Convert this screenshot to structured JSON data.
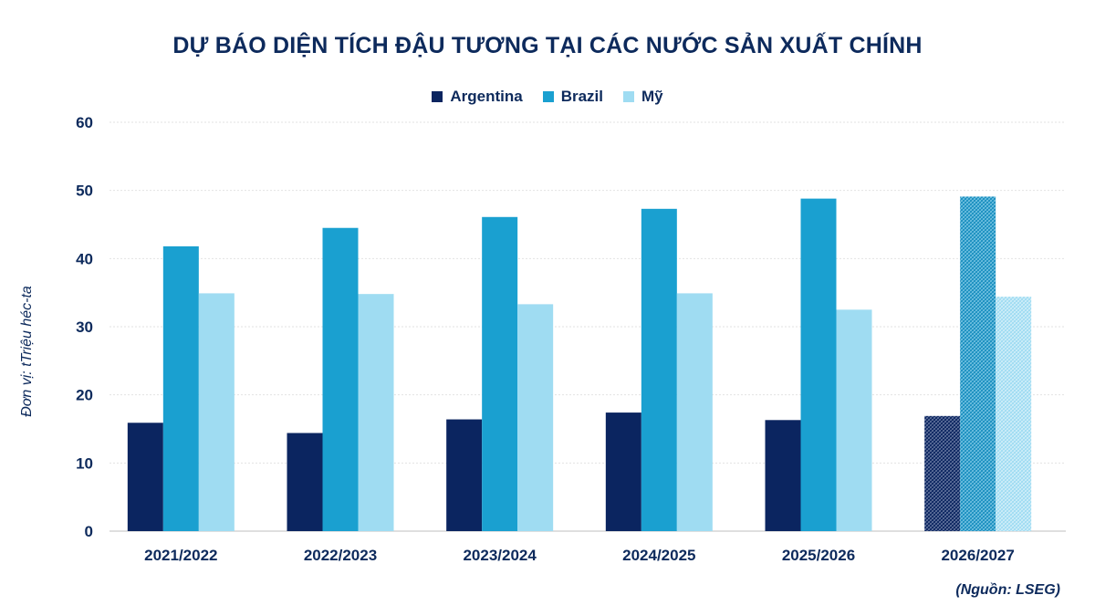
{
  "chart_data": {
    "type": "bar",
    "title": "DỰ BÁO DIỆN TÍCH ĐẬU TƯƠNG TẠI CÁC NƯỚC SẢN XUẤT CHÍNH",
    "ylabel": "Đơn vị: tTriệu héc-ta",
    "xlabel": "",
    "ylim": [
      0,
      60
    ],
    "yticks": [
      0,
      10,
      20,
      30,
      40,
      50,
      60
    ],
    "categories": [
      "2021/2022",
      "2022/2023",
      "2023/2024",
      "2024/2025",
      "2025/2026",
      "2026/2027"
    ],
    "series": [
      {
        "name": "Argentina",
        "color": "#0b2560",
        "values": [
          15.9,
          14.4,
          16.4,
          17.4,
          16.3,
          16.9
        ]
      },
      {
        "name": "Brazil",
        "color": "#1aa0d0",
        "values": [
          41.8,
          44.5,
          46.1,
          47.3,
          48.8,
          49.1
        ]
      },
      {
        "name": "Mỹ",
        "color": "#9fdcf2",
        "values": [
          34.9,
          34.8,
          33.3,
          34.9,
          32.5,
          34.4
        ]
      }
    ],
    "forecast_categories": [
      "2026/2027"
    ],
    "grid": true,
    "legend_position": "top-center"
  },
  "source": "(Nguồn: LSEG)"
}
